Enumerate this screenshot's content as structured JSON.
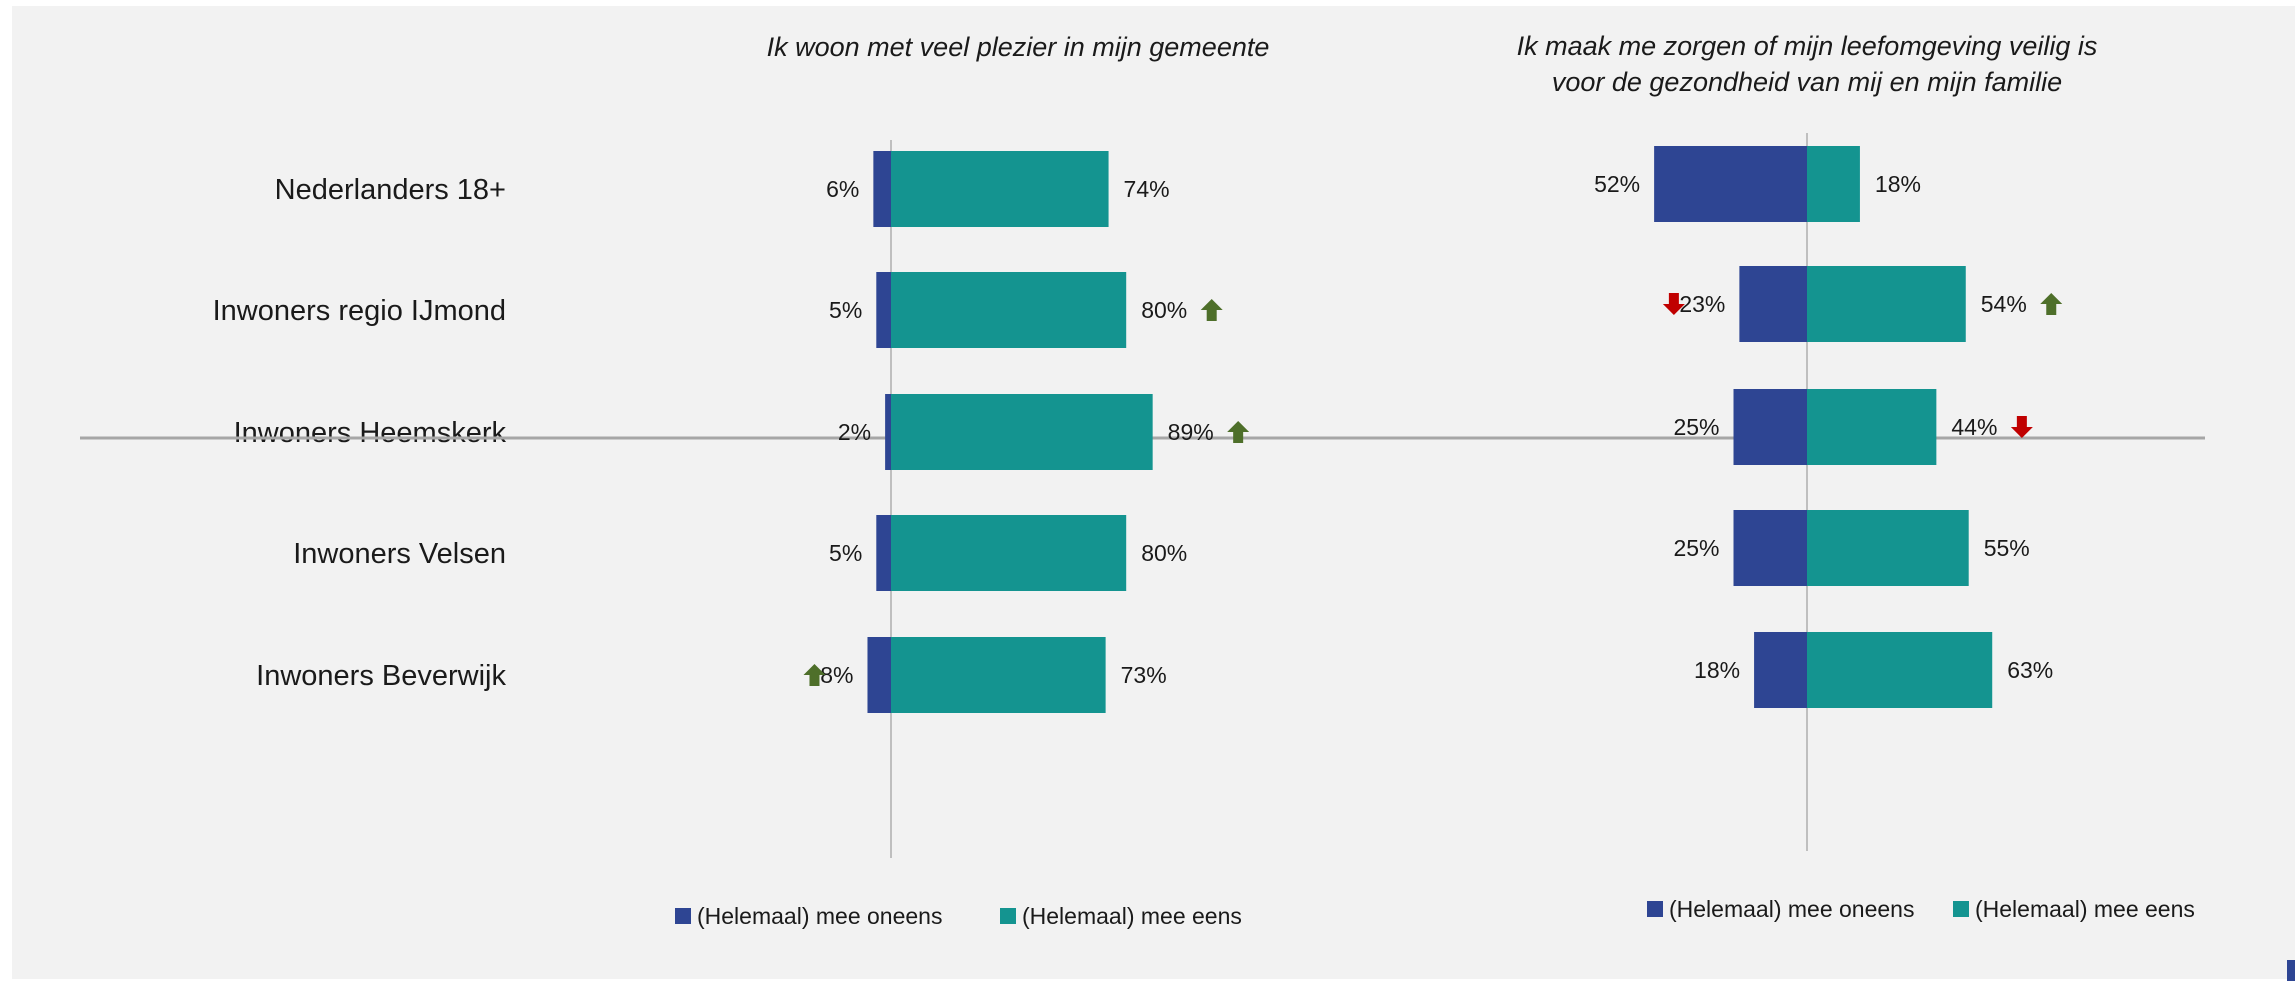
{
  "colors": {
    "oneens": "#2e4593",
    "eens": "#149490",
    "arrow_up": "#4e6f2a",
    "arrow_down": "#c00000",
    "axis": "#bfbfbf",
    "separator": "#a6a6a6"
  },
  "chart_data": [
    {
      "type": "bar",
      "orientation": "horizontal-diverging",
      "title": "Ik woon met veel plezier in mijn gemeente",
      "categories": [
        "Nederlanders 18+",
        "Inwoners regio IJmond",
        "Inwoners Heemskerk",
        "Inwoners Velsen",
        "Inwoners Beverwijk"
      ],
      "series": [
        {
          "name": "(Helemaal) mee oneens",
          "values": [
            6,
            5,
            2,
            5,
            8
          ],
          "labels": [
            "6%",
            "5%",
            "2%",
            "5%",
            "8%"
          ],
          "arrows": [
            null,
            null,
            null,
            null,
            "up"
          ],
          "color": "#2e4593"
        },
        {
          "name": "(Helemaal) mee eens",
          "values": [
            74,
            80,
            89,
            80,
            73
          ],
          "labels": [
            "74%",
            "80%",
            "89%",
            "80%",
            "73%"
          ],
          "arrows": [
            null,
            "up",
            "up",
            null,
            null
          ],
          "color": "#149490"
        }
      ]
    },
    {
      "type": "bar",
      "orientation": "horizontal-diverging",
      "title": "Ik maak me zorgen of mijn leefomgeving veilig is voor de gezondheid van mij en mijn familie",
      "title_lines": [
        "Ik maak me zorgen of mijn leefomgeving veilig is",
        "voor de gezondheid van mij en mijn familie"
      ],
      "categories": [
        "Nederlanders 18+",
        "Inwoners regio IJmond",
        "Inwoners Heemskerk",
        "Inwoners Velsen",
        "Inwoners Beverwijk"
      ],
      "series": [
        {
          "name": "(Helemaal) mee oneens",
          "values": [
            52,
            23,
            25,
            25,
            18
          ],
          "labels": [
            "52%",
            "23%",
            "25%",
            "25%",
            "18%"
          ],
          "arrows": [
            null,
            "down",
            null,
            null,
            null
          ],
          "color": "#2e4593"
        },
        {
          "name": "(Helemaal) mee eens",
          "values": [
            18,
            54,
            44,
            55,
            63
          ],
          "labels": [
            "18%",
            "54%",
            "44%",
            "55%",
            "63%"
          ],
          "arrows": [
            null,
            "up",
            "down",
            null,
            null
          ],
          "color": "#149490"
        }
      ]
    }
  ]
}
